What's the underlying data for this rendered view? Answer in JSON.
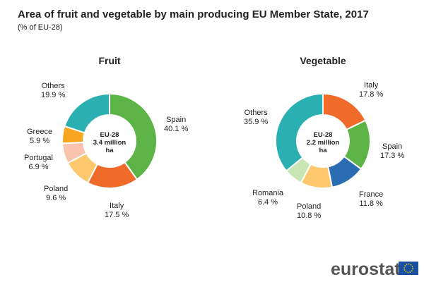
{
  "title": "Area of fruit and vegetable by main producing EU Member State, 2017",
  "subtitle": "(% of EU-28)",
  "logo": "eurostat",
  "chart_data": [
    {
      "type": "pie",
      "title": "Fruit",
      "center_label": [
        "EU-28",
        "3.4 million",
        "ha"
      ],
      "slices": [
        {
          "label": "Spain",
          "value": 40.1,
          "text": "40.1 %",
          "color": "#5cb446"
        },
        {
          "label": "Italy",
          "value": 17.5,
          "text": "17.5 %",
          "color": "#f06a2a"
        },
        {
          "label": "Poland",
          "value": 9.6,
          "text": "9.6 %",
          "color": "#fdc86e"
        },
        {
          "label": "Portugal",
          "value": 6.9,
          "text": "6.9 %",
          "color": "#f9c3ae"
        },
        {
          "label": "Greece",
          "value": 5.9,
          "text": "5.9 %",
          "color": "#f8a51f"
        },
        {
          "label": "Others",
          "value": 19.9,
          "text": "19.9 %",
          "color": "#2bb0b2"
        }
      ]
    },
    {
      "type": "pie",
      "title": "Vegetable",
      "center_label": [
        "EU-28",
        "2.2 million",
        "ha"
      ],
      "slices": [
        {
          "label": "Italy",
          "value": 17.8,
          "text": "17.8 %",
          "color": "#f06a2a"
        },
        {
          "label": "Spain",
          "value": 17.3,
          "text": "17.3 %",
          "color": "#5cb446"
        },
        {
          "label": "France",
          "value": 11.8,
          "text": "11.8 %",
          "color": "#2a6cb2"
        },
        {
          "label": "Poland",
          "value": 10.8,
          "text": "10.8 %",
          "color": "#fdc86e"
        },
        {
          "label": "Romania",
          "value": 6.4,
          "text": "6.4 %",
          "color": "#c8e6b4"
        },
        {
          "label": "Others",
          "value": 35.9,
          "text": "35.9 %",
          "color": "#2bb0b2"
        }
      ]
    }
  ]
}
